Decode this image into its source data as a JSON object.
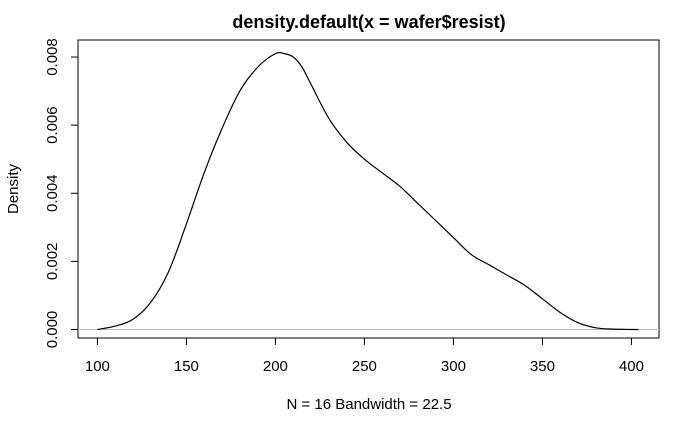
{
  "chart_data": {
    "type": "line",
    "title": "density.default(x = wafer$resist)",
    "xlabel": "N = 16   Bandwidth = 22.5",
    "ylabel": "Density",
    "xlim": [
      89.1,
      415.5
    ],
    "ylim": [
      -0.00025,
      0.0085
    ],
    "x_ticks": [
      "100",
      "150",
      "200",
      "250",
      "300",
      "350",
      "400"
    ],
    "y_ticks": [
      "0.000",
      "0.002",
      "0.004",
      "0.006",
      "0.008"
    ],
    "grid": false,
    "legend": "none",
    "baseline": 0,
    "series": [
      {
        "x": [
          100,
          110,
          120,
          130,
          140,
          150,
          160,
          170,
          180,
          190,
          200,
          205,
          210,
          215,
          220,
          230,
          240,
          250,
          260,
          270,
          280,
          290,
          300,
          310,
          320,
          330,
          340,
          350,
          360,
          370,
          380,
          390,
          400,
          404
        ],
        "y": [
          0.0,
          0.0001,
          0.0003,
          0.0008,
          0.0017,
          0.0031,
          0.0046,
          0.0059,
          0.007,
          0.0077,
          0.0081,
          0.0081,
          0.008,
          0.0077,
          0.0072,
          0.0062,
          0.0055,
          0.005,
          0.0046,
          0.0042,
          0.0037,
          0.0032,
          0.0027,
          0.0022,
          0.0019,
          0.0016,
          0.0013,
          0.0009,
          0.0005,
          0.0002,
          5e-05,
          1e-05,
          0.0,
          0.0
        ]
      }
    ],
    "colors": {
      "line": "#000000",
      "baseline": "#bebebe",
      "axes": "#000000"
    }
  }
}
